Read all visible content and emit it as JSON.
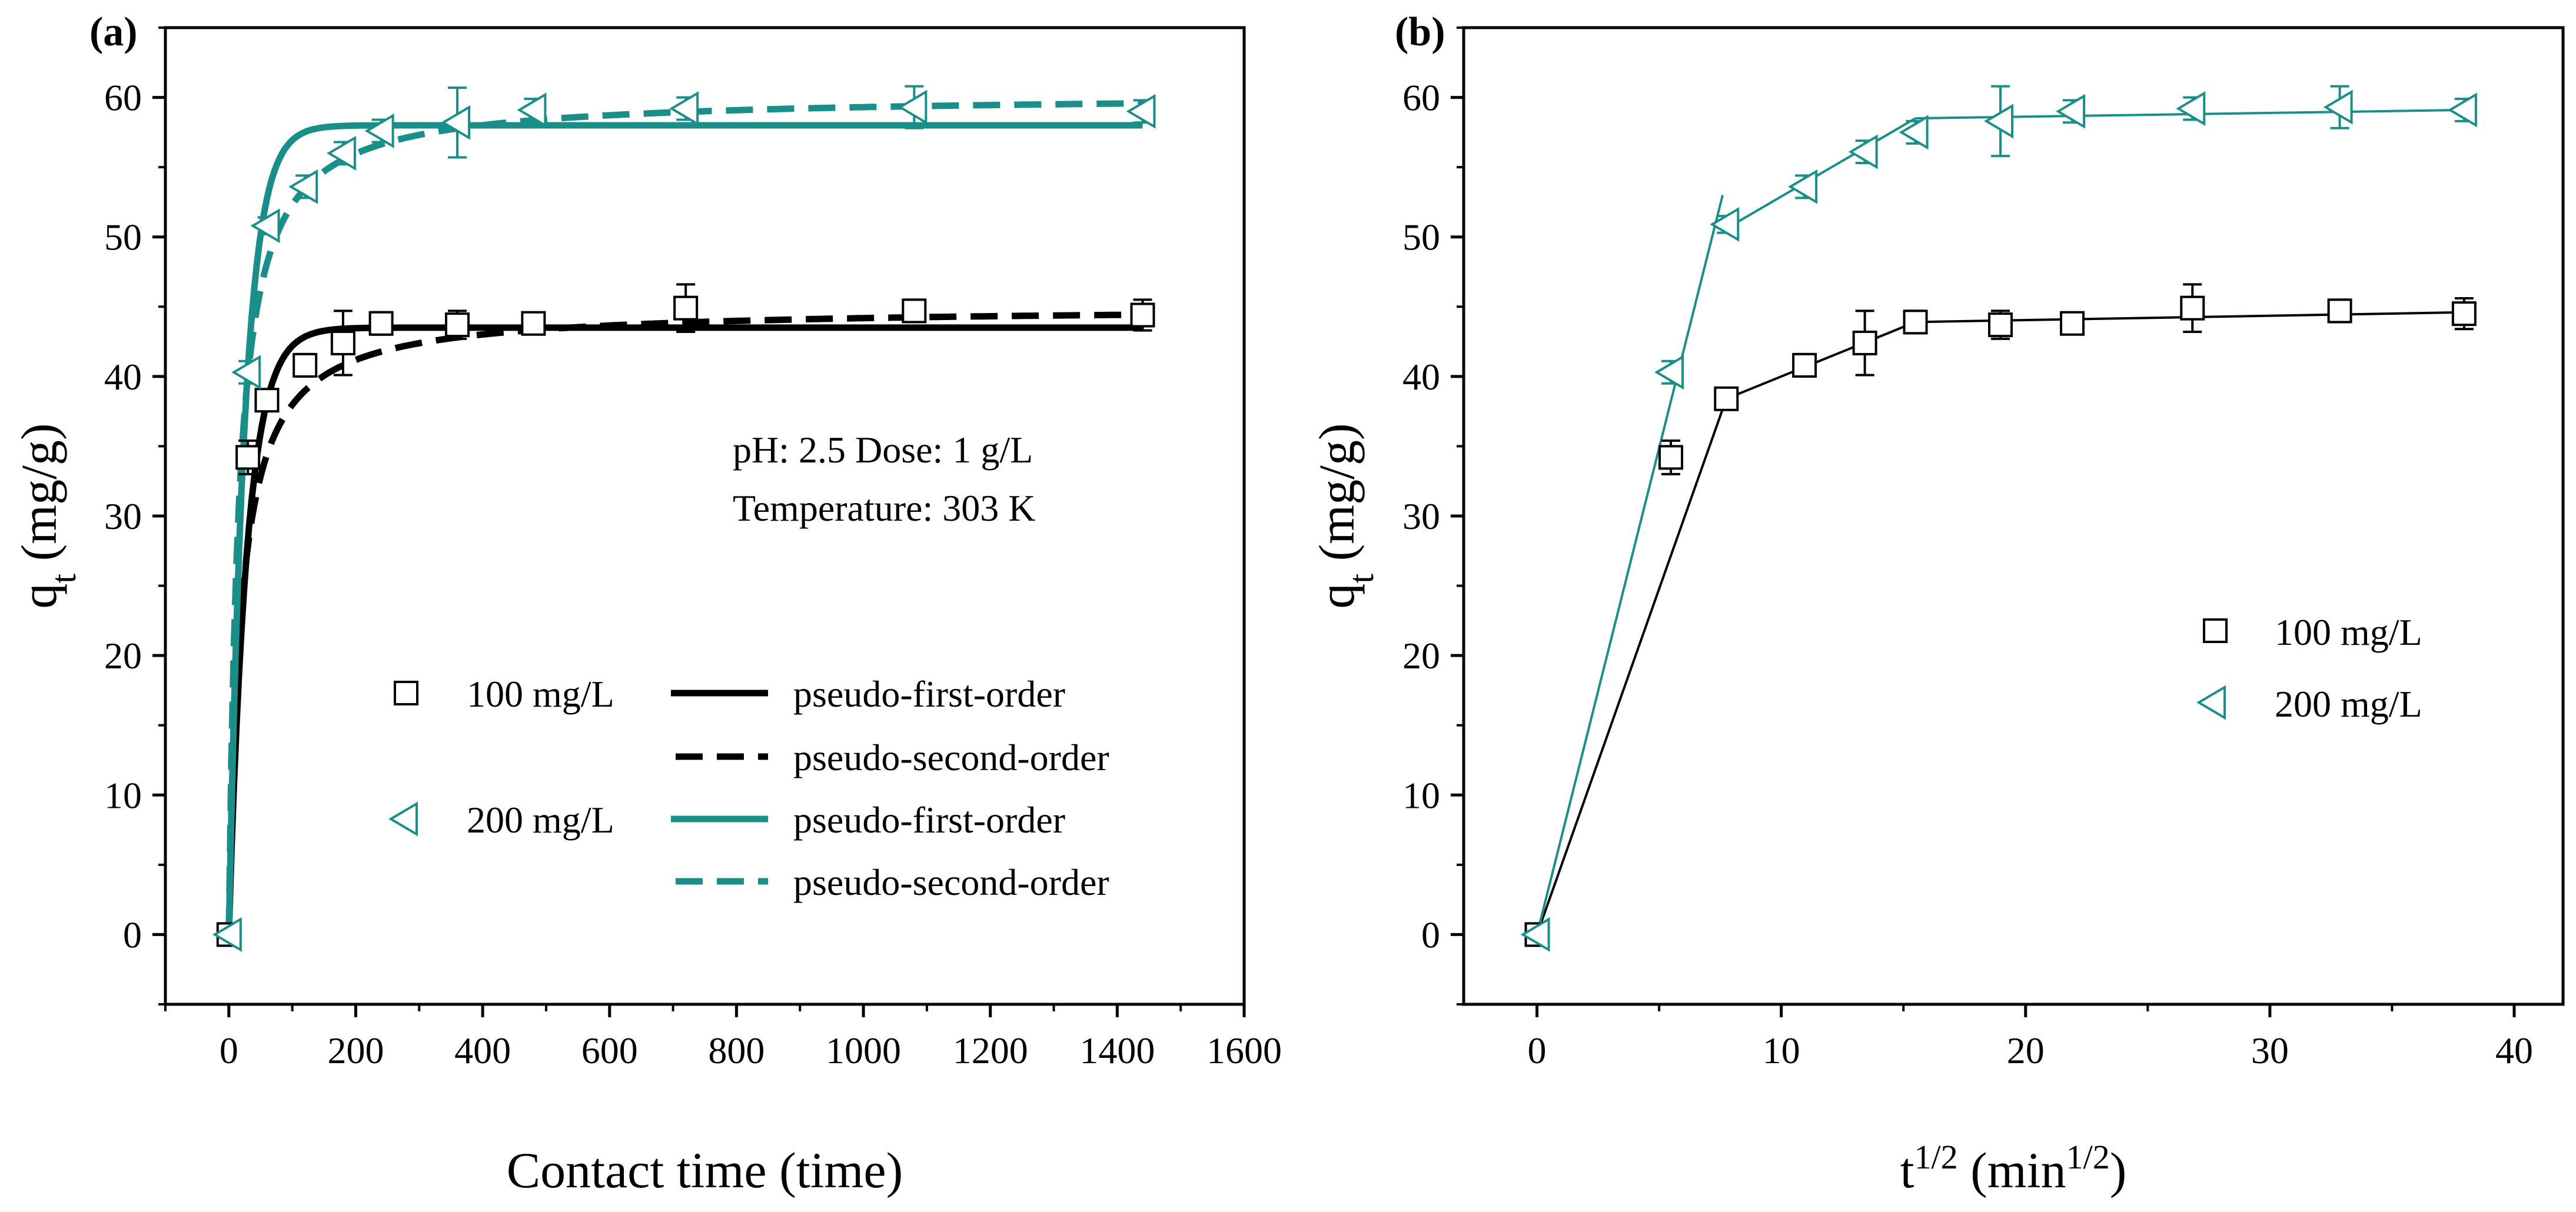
{
  "colors": {
    "black": "#000000",
    "teal": "#1a8f8a"
  },
  "chart_data": [
    {
      "panel_label": "(a)",
      "type": "scatter",
      "xlabel": "Contact time (time)",
      "ylabel_main": "q",
      "ylabel_sub": "t",
      "ylabel_unit": " (mg/g)",
      "xlim": [
        -100,
        1600
      ],
      "ylim": [
        -5,
        65
      ],
      "xticks": [
        0,
        200,
        400,
        600,
        800,
        1000,
        1200,
        1400,
        1600
      ],
      "yticks": [
        0,
        10,
        20,
        30,
        40,
        50,
        60
      ],
      "annotation": {
        "line1": "pH: 2.5      Dose: 1 g/L",
        "line2": "Temperature: 303 K"
      },
      "series": [
        {
          "name": "100 mg/L",
          "marker": "square",
          "color": "#000000",
          "x": [
            0,
            30,
            60,
            120,
            180,
            240,
            360,
            480,
            720,
            1080,
            1440
          ],
          "y": [
            0,
            34.2,
            38.3,
            40.8,
            42.4,
            43.8,
            43.7,
            43.8,
            44.9,
            44.7,
            44.4
          ],
          "err": [
            0,
            1.2,
            0.6,
            0.8,
            2.3,
            0.8,
            1.0,
            0.7,
            1.7,
            0.8,
            1.1
          ]
        },
        {
          "name": "200 mg/L",
          "marker": "triangle-left",
          "color": "#1a8f8a",
          "x": [
            0,
            30,
            60,
            120,
            180,
            240,
            360,
            480,
            720,
            1080,
            1440
          ],
          "y": [
            0,
            40.3,
            50.8,
            53.6,
            56.0,
            57.6,
            58.2,
            59.1,
            59.2,
            59.3,
            59.0
          ],
          "err": [
            0,
            0.8,
            0.6,
            0.8,
            0.8,
            0.8,
            2.5,
            0.8,
            0.8,
            1.5,
            0.8
          ]
        }
      ],
      "models": [
        {
          "name": "pseudo-first-order",
          "for": "100 mg/L",
          "style": "solid",
          "color": "#000000",
          "qe": 43.5,
          "k": 0.035
        },
        {
          "name": "pseudo-second-order",
          "for": "100 mg/L",
          "style": "dashed",
          "color": "#000000",
          "qe": 45.0,
          "k": 0.0012
        },
        {
          "name": "pseudo-first-order",
          "for": "200 mg/L",
          "style": "solid",
          "color": "#1a8f8a",
          "qe": 58.0,
          "k": 0.04
        },
        {
          "name": "pseudo-second-order",
          "for": "200 mg/L",
          "style": "dashed",
          "color": "#1a8f8a",
          "qe": 60.2,
          "k": 0.0011
        }
      ],
      "legend": {
        "row1_marker": "100 mg/L",
        "row1_line": "pseudo-first-order",
        "row2_line": "pseudo-second-order",
        "row3_marker": "200 mg/L",
        "row3_line": "pseudo-first-order",
        "row4_line": "pseudo-second-order"
      }
    },
    {
      "panel_label": "(b)",
      "type": "line",
      "xlabel_main": "t",
      "xlabel_sup": "1/2",
      "xlabel_unit": " (min",
      "xlabel_unit_sup": "1/2",
      "xlabel_close": ")",
      "ylabel_main": "q",
      "ylabel_sub": "t",
      "ylabel_unit": " (mg/g)",
      "xlim": [
        -3,
        42
      ],
      "ylim": [
        -5,
        65
      ],
      "xticks": [
        0,
        10,
        20,
        30,
        40
      ],
      "yticks": [
        0,
        10,
        20,
        30,
        40,
        50,
        60
      ],
      "series": [
        {
          "name": "100 mg/L",
          "marker": "square",
          "color": "#000000",
          "x": [
            0,
            5.48,
            7.75,
            10.95,
            13.42,
            15.49,
            18.97,
            21.91,
            26.83,
            32.86,
            37.95
          ],
          "y": [
            0,
            34.2,
            38.4,
            40.8,
            42.4,
            43.9,
            43.7,
            43.8,
            44.9,
            44.7,
            44.5
          ],
          "err": [
            0,
            1.2,
            0.6,
            0.8,
            2.3,
            0.8,
            1.0,
            0.7,
            1.7,
            0.8,
            1.1
          ],
          "fit_segments": [
            [
              [
                0,
                0
              ],
              [
                7.75,
                38.4
              ]
            ],
            [
              [
                7.75,
                38.4
              ],
              [
                15.49,
                43.9
              ]
            ],
            [
              [
                15.49,
                43.9
              ],
              [
                37.95,
                44.6
              ]
            ]
          ]
        },
        {
          "name": "200 mg/L",
          "marker": "triangle-left",
          "color": "#1a8f8a",
          "x": [
            0,
            5.48,
            7.75,
            10.95,
            13.42,
            15.49,
            18.97,
            21.91,
            26.83,
            32.86,
            37.95
          ],
          "y": [
            0,
            40.3,
            50.9,
            53.6,
            56.1,
            57.5,
            58.3,
            59.0,
            59.2,
            59.3,
            59.1
          ],
          "err": [
            0,
            0.8,
            0.6,
            0.8,
            0.8,
            0.8,
            2.5,
            0.8,
            0.8,
            1.5,
            0.8
          ],
          "fit_segments": [
            [
              [
                0,
                0
              ],
              [
                7.6,
                53.0
              ]
            ],
            [
              [
                7.75,
                50.6
              ],
              [
                15.49,
                58.5
              ]
            ],
            [
              [
                15.49,
                58.5
              ],
              [
                37.95,
                59.1
              ]
            ]
          ]
        }
      ],
      "legend": {
        "row1": "100 mg/L",
        "row2": "200 mg/L"
      }
    }
  ]
}
